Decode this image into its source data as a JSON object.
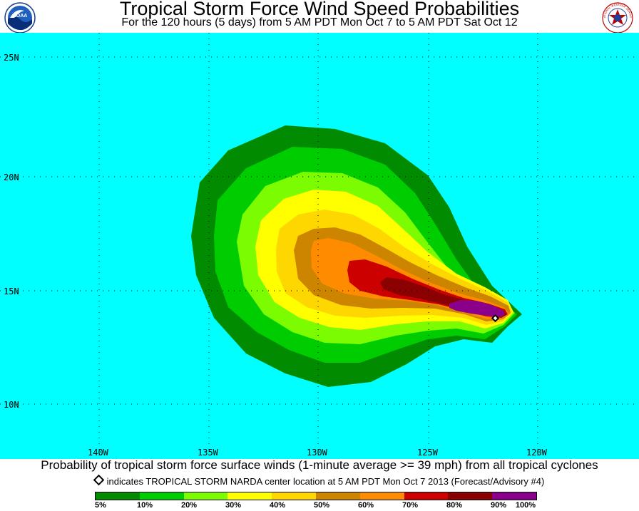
{
  "header": {
    "title": "Tropical Storm Force Wind Speed Probabilities",
    "subtitle": "For the 120 hours (5 days) from 5 AM PDT Mon Oct 7 to 5 AM PDT Sat Oct 12"
  },
  "logos": {
    "left": "noaa-logo",
    "left_text": "NOAA",
    "right": "national-weather-service-logo",
    "right_text": "NATIONAL WEATHER SERVICE"
  },
  "map": {
    "ocean_color": "#00ffff",
    "latitude_labels": [
      "25N",
      "20N",
      "15N",
      "10N"
    ],
    "longitude_labels": [
      "140W",
      "135W",
      "130W",
      "125W",
      "120W"
    ]
  },
  "caption": "Probability of tropical storm force surface winds (1-minute average >= 39 mph) from all tropical cyclones",
  "center_note": "indicates TROPICAL STORM NARDA center location at 5 AM PDT Mon Oct 7 2013 (Forecast/Advisory #4)",
  "legend": {
    "colors": [
      "#008b00",
      "#00cd00",
      "#7cfc00",
      "#ffff00",
      "#ffd700",
      "#cd8500",
      "#ff8c00",
      "#cd0000",
      "#8b0000",
      "#8b008b"
    ],
    "labels": [
      "5%",
      "10%",
      "20%",
      "30%",
      "40%",
      "50%",
      "60%",
      "70%",
      "80%",
      "90%",
      "100%"
    ]
  }
}
